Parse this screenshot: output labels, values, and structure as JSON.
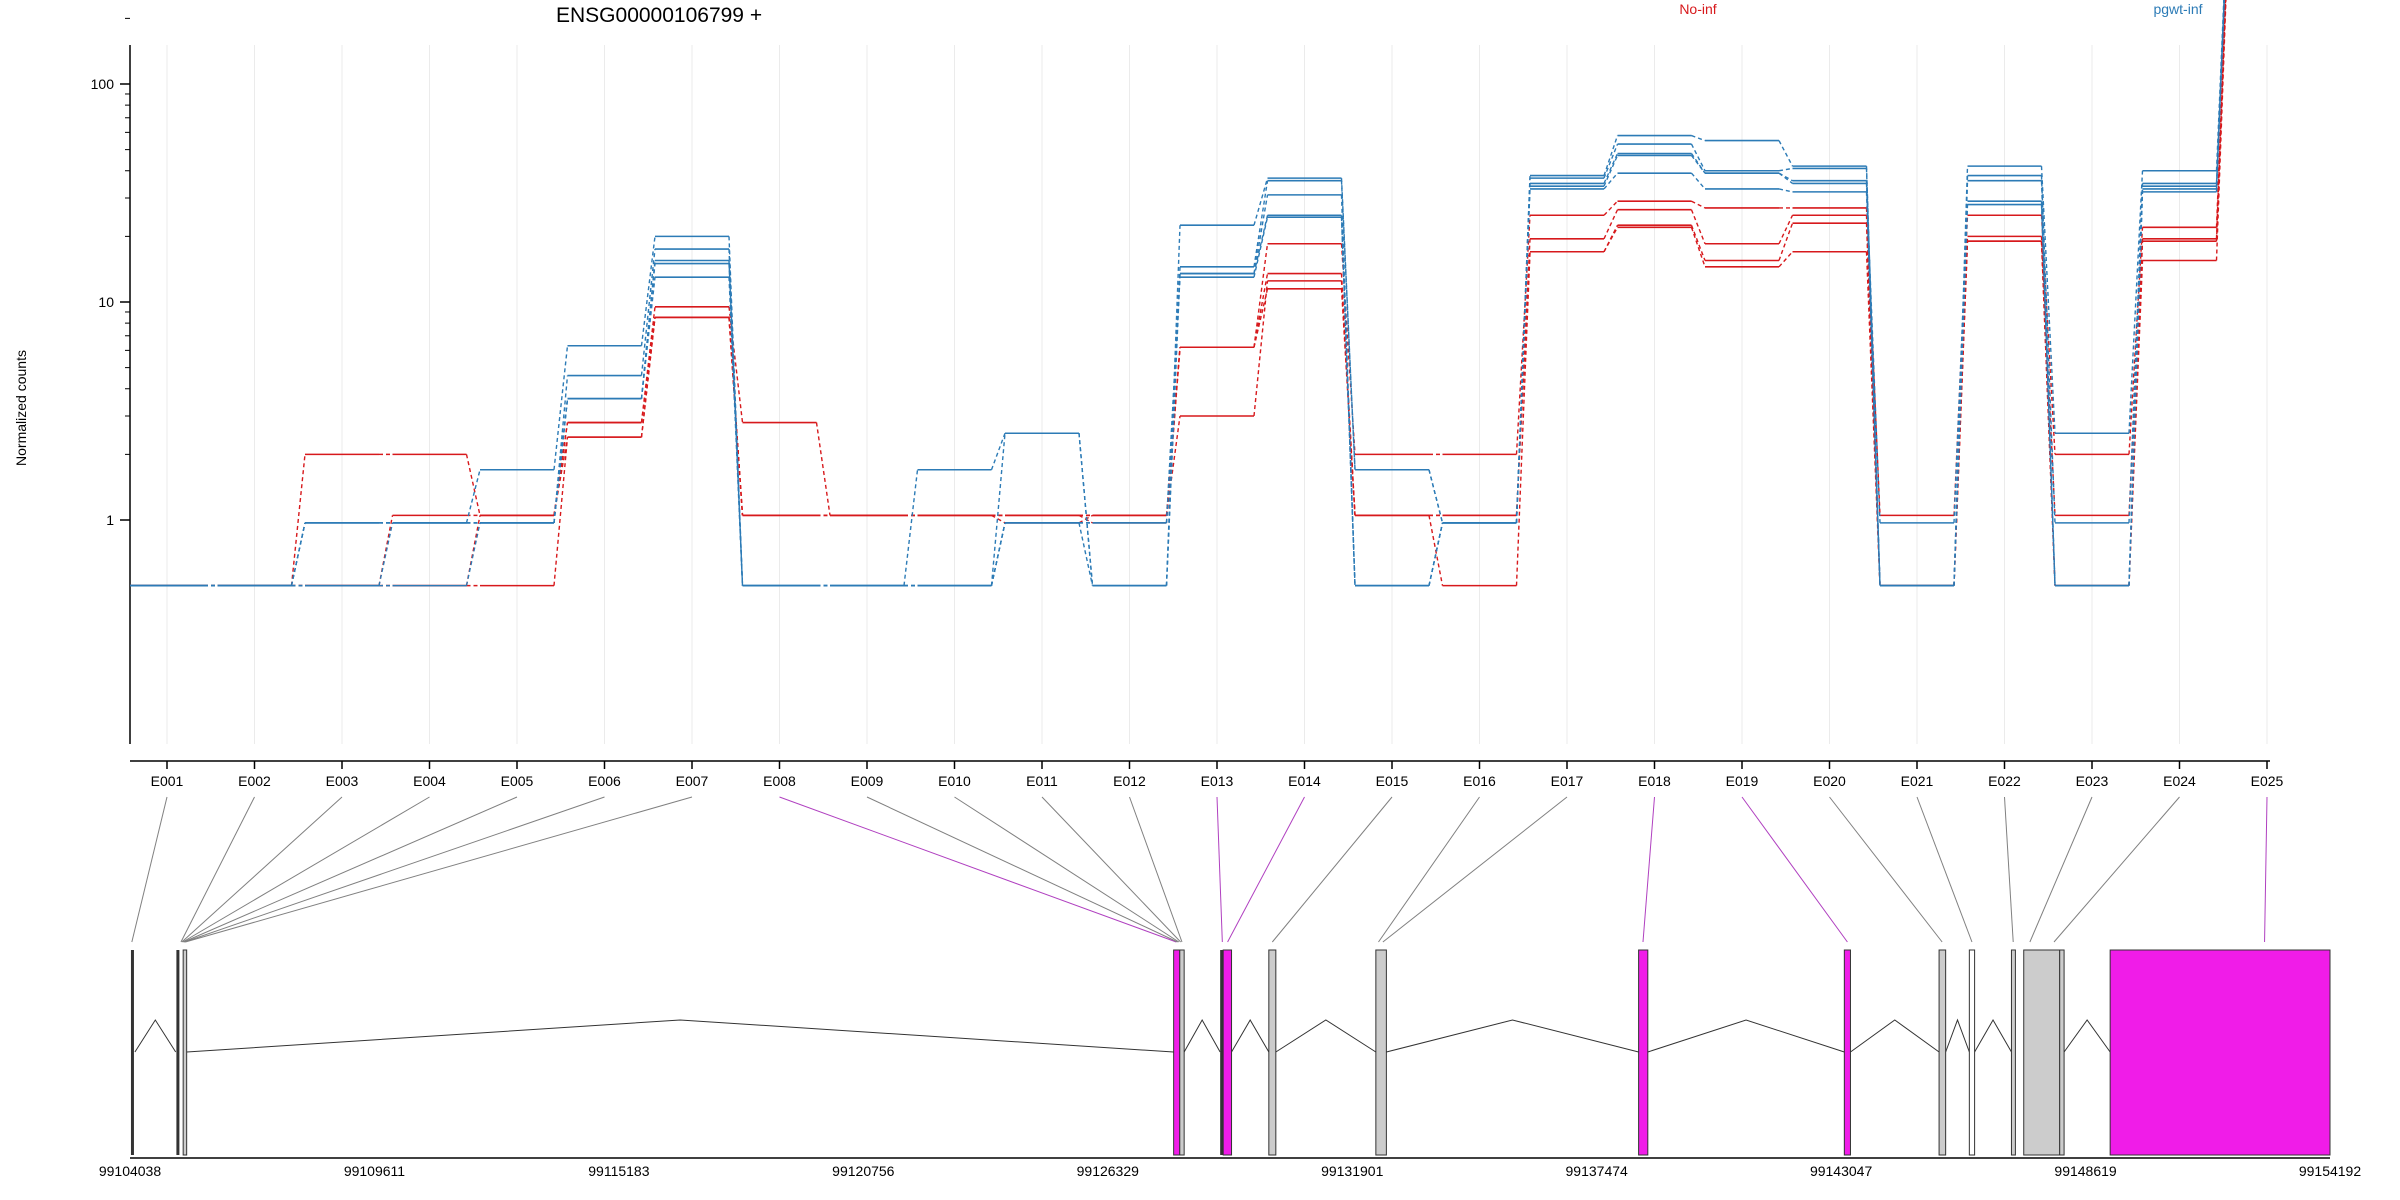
{
  "colors": {
    "no_inf": "#d7191c",
    "pgwt_inf": "#2c7bb6",
    "highlight_exon": "#f01ce8",
    "normal_exon": "#cccccc",
    "highlight_link": "#b040c0",
    "normal_link": "#808080"
  },
  "chart_data": {
    "type": "line",
    "title": "ENSG00000106799 +",
    "xlabel": "",
    "ylabel": "Normalized counts",
    "y_scale": "log",
    "ylim": [
      0.5,
      1300
    ],
    "y_ticks": [
      "1",
      "10",
      "100",
      "1000"
    ],
    "y_tick_values": [
      1,
      10,
      100,
      1000
    ],
    "categories": [
      "E001",
      "E002",
      "E003",
      "E004",
      "E005",
      "E006",
      "E007",
      "E008",
      "E009",
      "E010",
      "E011",
      "E012",
      "E013",
      "E014",
      "E015",
      "E016",
      "E017",
      "E018",
      "E019",
      "E020",
      "E021",
      "E022",
      "E023",
      "E024",
      "E025"
    ],
    "legend": [
      {
        "name": "No-inf",
        "color": "#d7191c"
      },
      {
        "name": "pgwt-inf",
        "color": "#2c7bb6"
      }
    ],
    "series": [
      {
        "group": "No-inf",
        "values": [
          0.5,
          0.5,
          2,
          2,
          1.05,
          2.8,
          9.5,
          2.8,
          1.05,
          1.05,
          1.05,
          1.05,
          6.2,
          18.5,
          2,
          2,
          25,
          29,
          27,
          27,
          1.05,
          25,
          2,
          22,
          870
        ]
      },
      {
        "group": "No-inf",
        "values": [
          0.5,
          0.5,
          0.5,
          1.05,
          1.05,
          2.4,
          8.5,
          1.05,
          1.05,
          1.05,
          1.05,
          1.05,
          6.2,
          13.5,
          1.05,
          1.05,
          19.5,
          26.5,
          18.5,
          25,
          0.5,
          20,
          1.05,
          19.5,
          860
        ]
      },
      {
        "group": "No-inf",
        "values": [
          0.5,
          0.5,
          0.5,
          0.5,
          0.5,
          2.4,
          8.5,
          1.05,
          1.05,
          1.05,
          0.97,
          1.05,
          3,
          12.5,
          1.05,
          0.5,
          17,
          22.5,
          15.5,
          23,
          0.5,
          19,
          0.5,
          19,
          850
        ]
      },
      {
        "group": "No-inf",
        "values": [
          0.5,
          0.5,
          0.5,
          0.5,
          1.05,
          2.8,
          8.5,
          1.05,
          1.05,
          1.05,
          1.05,
          0.97,
          6.2,
          11.5,
          1.05,
          1.05,
          17,
          22,
          14.5,
          17,
          0.5,
          19,
          0.5,
          15.5,
          800
        ]
      },
      {
        "group": "pgwt-inf",
        "values": [
          0.5,
          0.5,
          0.97,
          0.97,
          1.7,
          6.3,
          20,
          0.5,
          0.5,
          1.7,
          2.5,
          0.5,
          22.5,
          37,
          1.7,
          0.97,
          38,
          58,
          55,
          42,
          0.5,
          42,
          2.5,
          40,
          1120
        ]
      },
      {
        "group": "pgwt-inf",
        "values": [
          0.5,
          0.5,
          0.97,
          0.97,
          0.97,
          4.6,
          17.5,
          0.5,
          0.5,
          0.5,
          2.5,
          0.5,
          14.5,
          36,
          1.7,
          0.97,
          37,
          53,
          40,
          41,
          0.5,
          38,
          0.97,
          35,
          1110
        ]
      },
      {
        "group": "pgwt-inf",
        "values": [
          0.5,
          0.5,
          0.97,
          0.97,
          0.97,
          3.6,
          15.5,
          0.5,
          0.5,
          0.5,
          0.97,
          0.5,
          13.5,
          31,
          0.5,
          0.97,
          35,
          48,
          39,
          36,
          0.5,
          36,
          0.5,
          34,
          1100
        ]
      },
      {
        "group": "pgwt-inf",
        "values": [
          0.5,
          0.5,
          0.5,
          0.97,
          0.97,
          3.6,
          15,
          0.5,
          0.5,
          0.5,
          0.97,
          0.97,
          13.5,
          25,
          0.5,
          0.97,
          34,
          47,
          39,
          35,
          0.97,
          29,
          0.5,
          33,
          1100
        ]
      },
      {
        "group": "pgwt-inf",
        "values": [
          0.5,
          0.5,
          0.5,
          0.5,
          0.97,
          3.6,
          13,
          0.5,
          0.5,
          0.5,
          0.97,
          0.97,
          13,
          24.5,
          0.5,
          0.97,
          33,
          39,
          33,
          32,
          0.5,
          28,
          0.5,
          32,
          1080
        ]
      }
    ],
    "gene_model": {
      "coord_ticks": [
        "99104038",
        "99109611",
        "99115183",
        "99120756",
        "99126329",
        "99131901",
        "99137474",
        "99143047",
        "99148619",
        "99154192"
      ],
      "coord_range": [
        99104038,
        99154192
      ],
      "exons": [
        {
          "start": 99104038,
          "end": 99104150,
          "highlight": false,
          "kind": "line"
        },
        {
          "start": 99105080,
          "end": 99105180,
          "highlight": false,
          "kind": "line"
        },
        {
          "start": 99105250,
          "end": 99105330,
          "highlight": false
        },
        {
          "start": 99127830,
          "end": 99127970,
          "highlight": true
        },
        {
          "start": 99127970,
          "end": 99128070,
          "highlight": false
        },
        {
          "start": 99128890,
          "end": 99128960,
          "highlight": false,
          "kind": "line"
        },
        {
          "start": 99128960,
          "end": 99129150,
          "highlight": true
        },
        {
          "start": 99130000,
          "end": 99130160,
          "highlight": false
        },
        {
          "start": 99132440,
          "end": 99132680,
          "highlight": false
        },
        {
          "start": 99138430,
          "end": 99138640,
          "highlight": true
        },
        {
          "start": 99143120,
          "end": 99143260,
          "highlight": true
        },
        {
          "start": 99145280,
          "end": 99145430,
          "highlight": false
        },
        {
          "start": 99145970,
          "end": 99146090,
          "highlight": false,
          "hollow": true
        },
        {
          "start": 99146930,
          "end": 99147020,
          "highlight": false
        },
        {
          "start": 99147210,
          "end": 99148030,
          "highlight": false
        },
        {
          "start": 99148030,
          "end": 99148130,
          "highlight": false
        },
        {
          "start": 99149180,
          "end": 99154192,
          "highlight": true
        }
      ],
      "introns": [
        [
          99104150,
          99105080
        ],
        [
          99105330,
          99127830
        ],
        [
          99128070,
          99128890
        ],
        [
          99129150,
          99130000
        ],
        [
          99130160,
          99132440
        ],
        [
          99132680,
          99138430
        ],
        [
          99138640,
          99143120
        ],
        [
          99143260,
          99145280
        ],
        [
          99145430,
          99145970
        ],
        [
          99146090,
          99146930
        ],
        [
          99148130,
          99149180
        ]
      ],
      "exon_bin_links": [
        {
          "bin": "E001",
          "target": 99104080,
          "highlight": false
        },
        {
          "bin": "E002",
          "target": 99105200,
          "highlight": false
        },
        {
          "bin": "E003",
          "target": 99105220,
          "highlight": false
        },
        {
          "bin": "E004",
          "target": 99105240,
          "highlight": false
        },
        {
          "bin": "E005",
          "target": 99105260,
          "highlight": false
        },
        {
          "bin": "E006",
          "target": 99105280,
          "highlight": false
        },
        {
          "bin": "E007",
          "target": 99105300,
          "highlight": false
        },
        {
          "bin": "E008",
          "target": 99127890,
          "highlight": true
        },
        {
          "bin": "E009",
          "target": 99127920,
          "highlight": false
        },
        {
          "bin": "E010",
          "target": 99127950,
          "highlight": false
        },
        {
          "bin": "E011",
          "target": 99127990,
          "highlight": false
        },
        {
          "bin": "E012",
          "target": 99128020,
          "highlight": false
        },
        {
          "bin": "E013",
          "target": 99128940,
          "highlight": true
        },
        {
          "bin": "E014",
          "target": 99129060,
          "highlight": true
        },
        {
          "bin": "E015",
          "target": 99130080,
          "highlight": false
        },
        {
          "bin": "E016",
          "target": 99132500,
          "highlight": false
        },
        {
          "bin": "E017",
          "target": 99132600,
          "highlight": false
        },
        {
          "bin": "E018",
          "target": 99138530,
          "highlight": true
        },
        {
          "bin": "E019",
          "target": 99143190,
          "highlight": true
        },
        {
          "bin": "E020",
          "target": 99145350,
          "highlight": false
        },
        {
          "bin": "E021",
          "target": 99146030,
          "highlight": false
        },
        {
          "bin": "E022",
          "target": 99146970,
          "highlight": false
        },
        {
          "bin": "E023",
          "target": 99147350,
          "highlight": false
        },
        {
          "bin": "E024",
          "target": 99147900,
          "highlight": false
        },
        {
          "bin": "E025",
          "target": 99152700,
          "highlight": true
        }
      ]
    }
  }
}
